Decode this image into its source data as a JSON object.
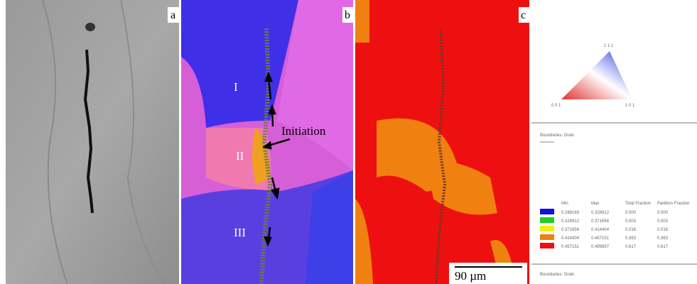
{
  "panel_labels": [
    "a",
    "b",
    "c"
  ],
  "grain_labels": [
    "I",
    "II",
    "III"
  ],
  "annotation": "Initiation",
  "scale_bar": "90 µm",
  "ipf_triangle": {
    "corners": [
      "1 1 1",
      "0 0 1",
      "1 0 1"
    ]
  },
  "legend": {
    "sections": [
      "Boundaries: Grain",
      "Boundaries: Grain"
    ],
    "header": [
      "Min",
      "Max",
      "Total Fraction",
      "Partition Fraction"
    ],
    "rows": [
      [
        "0.288169",
        "0.328912",
        "0.000",
        "0.000"
      ],
      [
        "0.328912",
        "0.371656",
        "0.003",
        "0.003"
      ],
      [
        "0.371656",
        "0.414404",
        "0.016",
        "0.016"
      ],
      [
        "0.414404",
        "0.457151",
        "0.363",
        "0.363"
      ],
      [
        "0.457151",
        "0.499897",
        "0.617",
        "0.617"
      ]
    ]
  }
}
